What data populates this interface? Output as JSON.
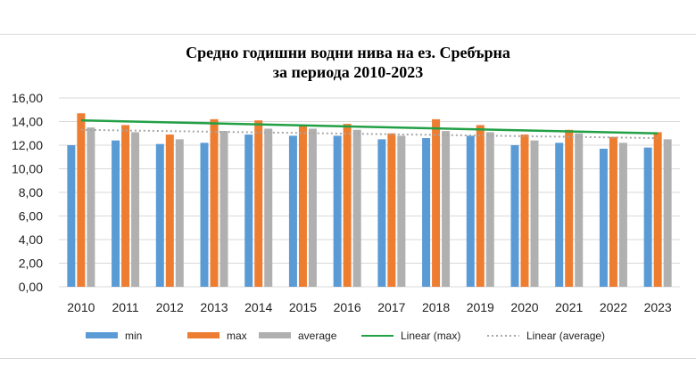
{
  "chart_data": {
    "type": "bar",
    "title_line1": "Средно годишни водни нива на ез. Сребърна",
    "title_line2": "за периода 2010-2023",
    "categories": [
      "2010",
      "2011",
      "2012",
      "2013",
      "2014",
      "2015",
      "2016",
      "2017",
      "2018",
      "2019",
      "2020",
      "2021",
      "2022",
      "2023"
    ],
    "series": [
      {
        "name": "min",
        "color": "#5b9bd5",
        "values": [
          12.0,
          12.4,
          12.1,
          12.2,
          12.9,
          12.8,
          12.8,
          12.5,
          12.6,
          12.8,
          12.0,
          12.2,
          11.7,
          11.8
        ]
      },
      {
        "name": "max",
        "color": "#ed7d31",
        "values": [
          14.7,
          13.7,
          12.9,
          14.2,
          14.1,
          13.7,
          13.8,
          13.0,
          14.2,
          13.7,
          12.9,
          13.3,
          12.7,
          13.1
        ]
      },
      {
        "name": "average",
        "color": "#b0b0b0",
        "values": [
          13.5,
          13.1,
          12.5,
          13.2,
          13.4,
          13.4,
          13.3,
          12.8,
          13.2,
          13.1,
          12.4,
          13.0,
          12.2,
          12.5
        ]
      }
    ],
    "trendlines": [
      {
        "name": "Linear (max)",
        "color": "#22a045",
        "style": "solid",
        "start": 14.1,
        "end": 13.0
      },
      {
        "name": "Linear (average)",
        "color": "#a6a6a6",
        "style": "dotted",
        "start": 13.3,
        "end": 12.6
      }
    ],
    "ylim": [
      0,
      16
    ],
    "yticks": [
      "0,00",
      "2,00",
      "4,00",
      "6,00",
      "8,00",
      "10,00",
      "12,00",
      "14,00",
      "16,00"
    ],
    "grid": true,
    "legend_position": "bottom"
  }
}
